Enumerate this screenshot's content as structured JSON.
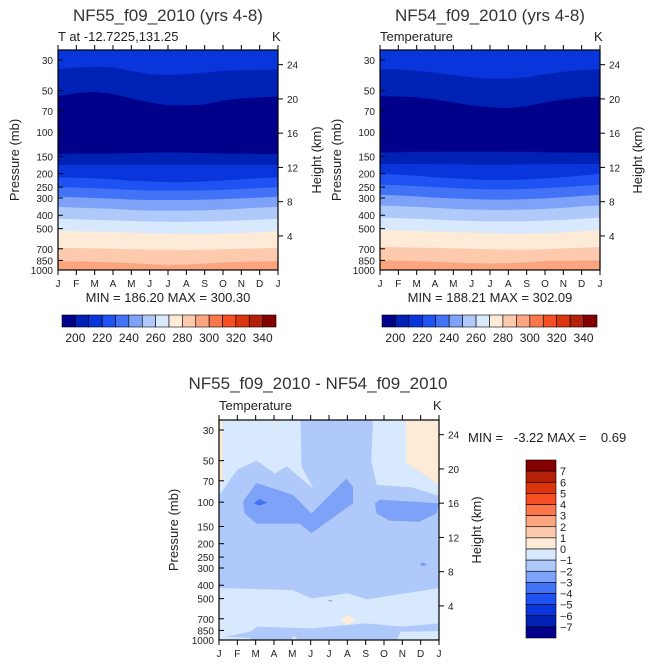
{
  "colors": [
    "#00008a",
    "#0022b4",
    "#0836dc",
    "#1e52f2",
    "#4272f6",
    "#7ea2f8",
    "#b0c9fb",
    "#d8e8fd",
    "#fdebd8",
    "#fdcaad",
    "#fba580",
    "#fa774a",
    "#f44e22",
    "#dc340c",
    "#b42008",
    "#840000"
  ],
  "months": [
    "J",
    "F",
    "M",
    "A",
    "M",
    "J",
    "J",
    "A",
    "S",
    "O",
    "N",
    "D",
    "J"
  ],
  "pressure_ticks": [
    30,
    50,
    70,
    100,
    150,
    200,
    250,
    300,
    400,
    500,
    700,
    850,
    1000
  ],
  "height_ticks": [
    24,
    20,
    16,
    12,
    8,
    4
  ],
  "chart_data": [
    {
      "type": "heatmap",
      "title": "NF55_f09_2010 (yrs 4-8)",
      "subtitle": "T at -12.7225,131.25",
      "units": "K",
      "xlabel": "",
      "ylabel": "Pressure (mb)",
      "y2label": "Height (km)",
      "minmax": "MIN = 186.20 MAX = 300.30",
      "levels": [
        200,
        210,
        220,
        230,
        240,
        250,
        260,
        270,
        280,
        290,
        300,
        310,
        320,
        330,
        340
      ],
      "colorbar_labels": [
        "200",
        "220",
        "240",
        "260",
        "280",
        "300",
        "320",
        "340"
      ],
      "top_color_index": 2,
      "boundaries": [
        {
          "below": 1,
          "p": [
            35,
            34,
            33.5,
            34,
            36,
            38,
            38.5,
            38,
            37,
            36,
            35.5,
            35.5,
            35
          ]
        },
        {
          "below": 0,
          "p": [
            55,
            52,
            51,
            53,
            57,
            61,
            64,
            64,
            63,
            59,
            57,
            56,
            55
          ]
        },
        {
          "below": 1,
          "p": [
            144,
            143,
            143,
            143,
            142,
            141,
            140,
            141,
            142,
            143,
            143,
            144,
            144
          ]
        },
        {
          "below": 2,
          "p": [
            173,
            173,
            173,
            173,
            173,
            173,
            173,
            173,
            173,
            173,
            173,
            173,
            173
          ]
        },
        {
          "below": 3,
          "p": [
            212,
            214,
            216,
            220,
            225,
            228,
            230,
            230,
            228,
            224,
            220,
            215,
            212
          ]
        },
        {
          "below": 4,
          "p": [
            250,
            252,
            255,
            258,
            262,
            265,
            265,
            265,
            264,
            262,
            258,
            254,
            250
          ]
        },
        {
          "below": 5,
          "p": [
            294,
            296,
            300,
            304,
            308,
            310,
            310,
            310,
            308,
            306,
            302,
            298,
            294
          ]
        },
        {
          "below": 6,
          "p": [
            348,
            352,
            356,
            360,
            366,
            370,
            370,
            370,
            368,
            364,
            358,
            352,
            348
          ]
        },
        {
          "below": 7,
          "p": [
            424,
            428,
            432,
            436,
            440,
            444,
            446,
            446,
            444,
            440,
            436,
            430,
            424
          ]
        },
        {
          "below": 8,
          "p": [
            520,
            522,
            525,
            530,
            535,
            540,
            545,
            548,
            548,
            545,
            538,
            530,
            520
          ]
        },
        {
          "below": 9,
          "p": [
            690,
            692,
            695,
            700,
            705,
            710,
            712,
            715,
            712,
            705,
            700,
            695,
            690
          ]
        },
        {
          "below": 10,
          "p": [
            860,
            865,
            870,
            880,
            890,
            905,
            915,
            910,
            895,
            880,
            870,
            865,
            860
          ]
        }
      ]
    },
    {
      "type": "heatmap",
      "title": "NF54_f09_2010 (yrs 4-8)",
      "subtitle": "Temperature",
      "units": "K",
      "xlabel": "",
      "ylabel": "Pressure (mb)",
      "y2label": "Height (km)",
      "minmax": "MIN = 188.21 MAX = 302.09",
      "levels": [
        200,
        210,
        220,
        230,
        240,
        250,
        260,
        270,
        280,
        290,
        300,
        310,
        320,
        330,
        340
      ],
      "colorbar_labels": [
        "200",
        "220",
        "240",
        "260",
        "280",
        "300",
        "320",
        "340"
      ],
      "top_color_index": 2,
      "boundaries": [
        {
          "below": 1,
          "p": [
            35,
            35,
            36,
            37,
            38.5,
            40,
            41,
            41,
            40,
            38,
            36.5,
            35.5,
            35
          ]
        },
        {
          "below": 0,
          "p": [
            55,
            55,
            56,
            58,
            61,
            64,
            66,
            67,
            65,
            61,
            58,
            56,
            55
          ]
        },
        {
          "below": 1,
          "p": [
            140,
            140,
            139,
            139,
            138,
            138,
            138,
            139,
            139,
            140,
            140,
            141,
            141
          ]
        },
        {
          "below": 2,
          "p": [
            170,
            170,
            170,
            171,
            171,
            172,
            172,
            172,
            171,
            171,
            170,
            170,
            170
          ]
        },
        {
          "below": 3,
          "p": [
            200,
            203,
            207,
            212,
            216,
            220,
            222,
            222,
            220,
            216,
            212,
            206,
            200
          ]
        },
        {
          "below": 4,
          "p": [
            240,
            242,
            246,
            250,
            254,
            258,
            260,
            260,
            258,
            254,
            250,
            245,
            240
          ]
        },
        {
          "below": 5,
          "p": [
            284,
            288,
            292,
            298,
            302,
            306,
            308,
            308,
            306,
            302,
            296,
            290,
            284
          ]
        },
        {
          "below": 6,
          "p": [
            340,
            344,
            348,
            354,
            360,
            364,
            366,
            366,
            364,
            360,
            354,
            346,
            340
          ]
        },
        {
          "below": 7,
          "p": [
            416,
            420,
            424,
            430,
            436,
            440,
            444,
            444,
            442,
            438,
            432,
            424,
            416
          ]
        },
        {
          "below": 8,
          "p": [
            512,
            515,
            520,
            525,
            530,
            535,
            540,
            545,
            545,
            540,
            532,
            522,
            512
          ]
        },
        {
          "below": 9,
          "p": [
            680,
            682,
            686,
            690,
            695,
            700,
            705,
            710,
            712,
            705,
            695,
            688,
            680
          ]
        },
        {
          "below": 10,
          "p": [
            850,
            855,
            862,
            870,
            880,
            890,
            895,
            890,
            880,
            860,
            855,
            852,
            850
          ]
        }
      ]
    },
    {
      "type": "heatmap",
      "title": "NF55_f09_2010 - NF54_f09_2010",
      "subtitle": "Temperature",
      "units": "K",
      "xlabel": "",
      "ylabel": "Pressure (mb)",
      "y2label": "Height (km)",
      "minmax": "MIN =   -3.22 MAX =    0.69",
      "levels": [
        -7,
        -6,
        -5,
        -4,
        -3,
        -2,
        -1,
        0,
        1,
        2,
        3,
        4,
        5,
        6,
        7
      ],
      "colorbar_labels": [
        "7",
        "6",
        "5",
        "4",
        "3",
        "2",
        "1",
        "0",
        "−1",
        "−2",
        "−3",
        "−4",
        "−5",
        "−6",
        "−7"
      ],
      "background_color_index": 6,
      "regions": [
        {
          "color_index": 8,
          "pts": [
            [
              0,
              25.3
            ],
            [
              0.2,
              25.3
            ],
            [
              0.2,
              70
            ],
            [
              0,
              75
            ]
          ]
        },
        {
          "color_index": 7,
          "pts": [
            [
              0.2,
              25.3
            ],
            [
              4.45,
              25.3
            ],
            [
              4.5,
              55
            ],
            [
              5.15,
              80
            ],
            [
              3.7,
              55
            ],
            [
              3.05,
              62
            ],
            [
              2.05,
              50
            ],
            [
              1.0,
              58
            ],
            [
              0,
              90
            ],
            [
              0,
              75
            ],
            [
              0.2,
              70
            ]
          ]
        },
        {
          "color_index": 8,
          "pts": [
            [
              2.92,
              25.3
            ],
            [
              3.08,
              25.3
            ],
            [
              3.0,
              28
            ]
          ]
        },
        {
          "color_index": 7,
          "pts": [
            [
              8.4,
              25.3
            ],
            [
              10.2,
              25.3
            ],
            [
              10.2,
              52
            ],
            [
              12,
              75
            ],
            [
              12,
              90
            ],
            [
              10.5,
              78
            ],
            [
              8.6,
              75
            ],
            [
              8.3,
              50
            ]
          ]
        },
        {
          "color_index": 8,
          "pts": [
            [
              10.2,
              25.3
            ],
            [
              12,
              25.3
            ],
            [
              12,
              75
            ],
            [
              10.2,
              52
            ]
          ]
        },
        {
          "color_index": 5,
          "pts": [
            [
              1.31,
              99
            ],
            [
              2.04,
              72.6
            ],
            [
              4.04,
              88.6
            ],
            [
              5.04,
              121
            ],
            [
              6.95,
              67.4
            ],
            [
              7.31,
              77.6
            ],
            [
              7.31,
              102
            ],
            [
              5.04,
              168
            ],
            [
              4.4,
              143
            ],
            [
              2.04,
              143
            ],
            [
              1.4,
              121
            ]
          ]
        },
        {
          "color_index": 4,
          "pts": [
            [
              1.9,
              102
            ],
            [
              2.2,
              95
            ],
            [
              2.65,
              101
            ],
            [
              2.2,
              106
            ]
          ]
        },
        {
          "color_index": 5,
          "pts": [
            [
              8.5,
              102
            ],
            [
              8.8,
              96
            ],
            [
              10.4,
              99
            ],
            [
              12,
              102
            ],
            [
              11.85,
              121
            ],
            [
              10.9,
              139
            ],
            [
              9.3,
              136
            ],
            [
              8.6,
              121
            ]
          ]
        },
        {
          "color_index": 5,
          "pts": [
            [
              10.95,
              280
            ],
            [
              11.1,
              272
            ],
            [
              11.35,
              285
            ],
            [
              11.1,
              292
            ]
          ]
        },
        {
          "color_index": 7,
          "pts": [
            [
              0,
              419
            ],
            [
              4,
              433
            ],
            [
              5.05,
              498
            ],
            [
              7,
              458
            ],
            [
              8.1,
              506
            ],
            [
              12,
              419
            ],
            [
              12,
              755
            ],
            [
              10,
              798
            ],
            [
              8,
              755
            ],
            [
              5,
              821
            ],
            [
              2.1,
              798
            ],
            [
              1.7,
              868
            ],
            [
              0,
              968
            ]
          ]
        },
        {
          "color_index": 5,
          "pts": [
            [
              5.9,
              520
            ],
            [
              6.1,
              510
            ],
            [
              6.2,
              525
            ]
          ]
        },
        {
          "color_index": 8,
          "pts": [
            [
              6.6,
              715
            ],
            [
              7.0,
              660
            ],
            [
              7.5,
              712
            ],
            [
              7.0,
              780
            ]
          ]
        },
        {
          "color_index": 7,
          "pts": [
            [
              0,
              940
            ],
            [
              1.7,
              965
            ],
            [
              1.7,
              1000
            ],
            [
              0,
              1000
            ]
          ]
        },
        {
          "color_index": 7,
          "pts": [
            [
              9.7,
              1000
            ],
            [
              9.9,
              870
            ],
            [
              12,
              860
            ],
            [
              12,
              1000
            ]
          ]
        },
        {
          "color_index": 7,
          "pts": [
            [
              3.9,
              1000
            ],
            [
              4.1,
              930
            ],
            [
              4.3,
              1000
            ]
          ]
        }
      ]
    }
  ]
}
